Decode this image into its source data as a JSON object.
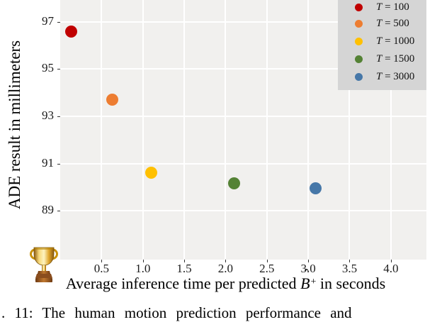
{
  "figure": {
    "caption_visible": ". 11: The human motion prediction performance and"
  },
  "icons": {
    "trophy": "trophy-icon"
  },
  "chart_data": {
    "type": "scatter",
    "title": "",
    "xlabel_parts": {
      "pre": "Average inference time per predicted ",
      "var": "B",
      "hat": "ˆ",
      "sup": "+",
      "post": " in seconds"
    },
    "ylabel": "ADE result in millimeters",
    "xlim": [
      0,
      4.43
    ],
    "ylim": [
      86.93,
      97.93
    ],
    "xticks": [
      "0.5",
      "1.0",
      "1.5",
      "2.0",
      "2.5",
      "3.0",
      "3.5",
      "4.0"
    ],
    "yticks": [
      "97",
      "95",
      "93",
      "91",
      "89"
    ],
    "grid": true,
    "plot_bg": "#f1f0ee",
    "gridline_color": "#ffffff",
    "legend_position": "upper right",
    "legend_bg": "#d5d5d5",
    "series": [
      {
        "label_var": "T",
        "label_rest": " = 100",
        "color": "#c00000",
        "x": 0.13,
        "y": 96.6
      },
      {
        "label_var": "T",
        "label_rest": " = 500",
        "color": "#ed7d31",
        "x": 0.63,
        "y": 93.7
      },
      {
        "label_var": "T",
        "label_rest": " = 1000",
        "color": "#ffc000",
        "x": 1.1,
        "y": 90.6
      },
      {
        "label_var": "T",
        "label_rest": " = 1500",
        "color": "#548235",
        "x": 2.1,
        "y": 90.15
      },
      {
        "label_var": "T",
        "label_rest": " = 3000",
        "color": "#4677a8",
        "x": 3.09,
        "y": 89.95
      }
    ]
  }
}
